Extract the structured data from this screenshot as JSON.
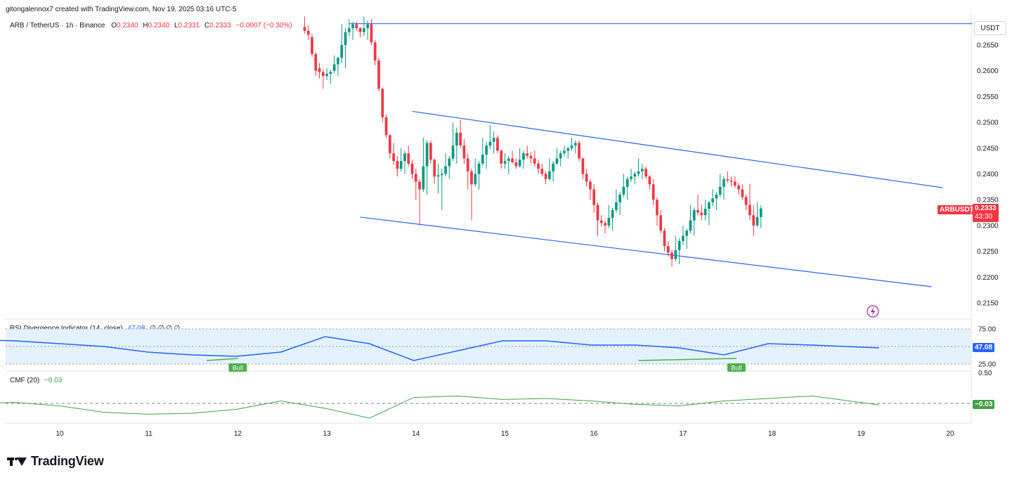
{
  "header": {
    "attribution": "gitongalennox7 created with TradingView.com, Nov 19, 2025 03:16 UTC-5",
    "symbol_line": "ARB / TetherUS · 1h · Binance",
    "o_label": "O",
    "o_value": "0.2340",
    "h_label": "H",
    "h_value": "0.2340",
    "l_label": "L",
    "l_value": "0.2331",
    "c_label": "C",
    "c_value": "0.2333",
    "change": "−0.0007 (−0.30%)"
  },
  "price_axis": {
    "currency": "USDT",
    "ticks": [
      "0.2650",
      "0.2600",
      "0.2550",
      "0.2500",
      "0.2450",
      "0.2400",
      "0.2350",
      "0.2300",
      "0.2250",
      "0.2200",
      "0.2150"
    ]
  },
  "last_price": {
    "symbol": "ARBUSDT",
    "price": "0.2333",
    "countdown": "43:30"
  },
  "rsi": {
    "title": "RSI Divergence Indicator (14, close)",
    "value": "47.08",
    "extra": "∅ ∅ ∅ ∅",
    "axis_ticks": [
      "75.00",
      "25.00"
    ],
    "current_badge": "47.08",
    "bull_label": "Bull"
  },
  "cmf": {
    "title": "CMF (20)",
    "value": "−0.03",
    "current_badge": "−0.03",
    "axis_tick": "0.50"
  },
  "time_axis": [
    "10",
    "11",
    "12",
    "13",
    "14",
    "15",
    "16",
    "17",
    "18",
    "19",
    "20"
  ],
  "brand": {
    "name": "TradingView"
  },
  "colors": {
    "up": "#089981",
    "down": "#f23645",
    "line": "#2962ff",
    "rsi": "#2962ff",
    "cmf": "#43a047",
    "band": "#e3f2fd"
  },
  "chart_data": {
    "type": "candlestick",
    "interval": "1h",
    "x_start": "2025-11-09",
    "ylim": [
      0.212,
      0.27
    ],
    "trendlines": [
      {
        "name": "resistance",
        "from": [
          "2025-11-13 06:00",
          0.26913
        ],
        "to": [
          "2025-11-20 06:00",
          0.26913
        ]
      },
      {
        "name": "channel-upper",
        "from": [
          "2025-11-13 23:00",
          0.25213
        ],
        "to": [
          "2025-11-19 22:00",
          0.23733
        ]
      },
      {
        "name": "channel-lower",
        "from": [
          "2025-11-13 09:00",
          0.23163
        ],
        "to": [
          "2025-11-19 19:00",
          0.21813
        ]
      }
    ],
    "candles_ohlc_by_hour": [
      {
        "t": "2025-11-12 18:00",
        "o": 0.2685,
        "h": 0.2705,
        "l": 0.266,
        "c": 0.267
      },
      {
        "t": "2025-11-12 20:00",
        "o": 0.2665,
        "h": 0.2672,
        "l": 0.259,
        "c": 0.26
      },
      {
        "t": "2025-11-12 22:00",
        "o": 0.2605,
        "h": 0.2615,
        "l": 0.2565,
        "c": 0.259
      },
      {
        "t": "2025-11-13 00:00",
        "o": 0.259,
        "h": 0.2605,
        "l": 0.2575,
        "c": 0.2598
      },
      {
        "t": "2025-11-13 02:00",
        "o": 0.26,
        "h": 0.263,
        "l": 0.259,
        "c": 0.2625
      },
      {
        "t": "2025-11-13 04:00",
        "o": 0.2625,
        "h": 0.269,
        "l": 0.2605,
        "c": 0.2675
      },
      {
        "t": "2025-11-13 06:00",
        "o": 0.2675,
        "h": 0.27,
        "l": 0.266,
        "c": 0.269
      },
      {
        "t": "2025-11-13 08:00",
        "o": 0.269,
        "h": 0.2695,
        "l": 0.2665,
        "c": 0.2675
      },
      {
        "t": "2025-11-13 10:00",
        "o": 0.2675,
        "h": 0.2705,
        "l": 0.266,
        "c": 0.269
      },
      {
        "t": "2025-11-13 12:00",
        "o": 0.269,
        "h": 0.27,
        "l": 0.261,
        "c": 0.262
      },
      {
        "t": "2025-11-13 14:00",
        "o": 0.262,
        "h": 0.2625,
        "l": 0.25,
        "c": 0.251
      },
      {
        "t": "2025-11-13 16:00",
        "o": 0.251,
        "h": 0.2515,
        "l": 0.243,
        "c": 0.244
      },
      {
        "t": "2025-11-13 18:00",
        "o": 0.244,
        "h": 0.246,
        "l": 0.2395,
        "c": 0.241
      },
      {
        "t": "2025-11-13 20:00",
        "o": 0.241,
        "h": 0.245,
        "l": 0.24,
        "c": 0.244
      },
      {
        "t": "2025-11-13 22:00",
        "o": 0.244,
        "h": 0.2455,
        "l": 0.239,
        "c": 0.24
      },
      {
        "t": "2025-11-14 00:00",
        "o": 0.24,
        "h": 0.241,
        "l": 0.23,
        "c": 0.237
      },
      {
        "t": "2025-11-14 02:00",
        "o": 0.237,
        "h": 0.247,
        "l": 0.236,
        "c": 0.246
      },
      {
        "t": "2025-11-14 04:00",
        "o": 0.246,
        "h": 0.2465,
        "l": 0.238,
        "c": 0.2395
      },
      {
        "t": "2025-11-14 06:00",
        "o": 0.2395,
        "h": 0.242,
        "l": 0.233,
        "c": 0.24
      },
      {
        "t": "2025-11-14 08:00",
        "o": 0.24,
        "h": 0.244,
        "l": 0.239,
        "c": 0.243
      },
      {
        "t": "2025-11-14 10:00",
        "o": 0.243,
        "h": 0.25,
        "l": 0.242,
        "c": 0.248
      },
      {
        "t": "2025-11-14 12:00",
        "o": 0.248,
        "h": 0.2505,
        "l": 0.242,
        "c": 0.243
      },
      {
        "t": "2025-11-14 14:00",
        "o": 0.243,
        "h": 0.244,
        "l": 0.231,
        "c": 0.238
      },
      {
        "t": "2025-11-14 16:00",
        "o": 0.238,
        "h": 0.243,
        "l": 0.237,
        "c": 0.242
      },
      {
        "t": "2025-11-14 18:00",
        "o": 0.242,
        "h": 0.247,
        "l": 0.241,
        "c": 0.2455
      },
      {
        "t": "2025-11-14 20:00",
        "o": 0.2455,
        "h": 0.2495,
        "l": 0.244,
        "c": 0.247
      },
      {
        "t": "2025-11-14 22:00",
        "o": 0.247,
        "h": 0.2475,
        "l": 0.241,
        "c": 0.242
      },
      {
        "t": "2025-11-15 00:00",
        "o": 0.242,
        "h": 0.244,
        "l": 0.24,
        "c": 0.243
      },
      {
        "t": "2025-11-15 02:00",
        "o": 0.243,
        "h": 0.2445,
        "l": 0.241,
        "c": 0.2415
      },
      {
        "t": "2025-11-15 04:00",
        "o": 0.2415,
        "h": 0.245,
        "l": 0.241,
        "c": 0.244
      },
      {
        "t": "2025-11-15 06:00",
        "o": 0.244,
        "h": 0.2455,
        "l": 0.242,
        "c": 0.243
      },
      {
        "t": "2025-11-15 08:00",
        "o": 0.243,
        "h": 0.2445,
        "l": 0.24,
        "c": 0.241
      },
      {
        "t": "2025-11-15 10:00",
        "o": 0.241,
        "h": 0.242,
        "l": 0.238,
        "c": 0.239
      },
      {
        "t": "2025-11-15 12:00",
        "o": 0.239,
        "h": 0.243,
        "l": 0.2385,
        "c": 0.242
      },
      {
        "t": "2025-11-15 14:00",
        "o": 0.242,
        "h": 0.245,
        "l": 0.2415,
        "c": 0.244
      },
      {
        "t": "2025-11-15 16:00",
        "o": 0.244,
        "h": 0.2455,
        "l": 0.243,
        "c": 0.245
      },
      {
        "t": "2025-11-15 18:00",
        "o": 0.245,
        "h": 0.247,
        "l": 0.244,
        "c": 0.246
      },
      {
        "t": "2025-11-15 20:00",
        "o": 0.246,
        "h": 0.2465,
        "l": 0.239,
        "c": 0.24
      },
      {
        "t": "2025-11-15 22:00",
        "o": 0.24,
        "h": 0.241,
        "l": 0.235,
        "c": 0.237
      },
      {
        "t": "2025-11-16 00:00",
        "o": 0.237,
        "h": 0.238,
        "l": 0.228,
        "c": 0.231
      },
      {
        "t": "2025-11-16 02:00",
        "o": 0.231,
        "h": 0.232,
        "l": 0.2285,
        "c": 0.23
      },
      {
        "t": "2025-11-16 04:00",
        "o": 0.23,
        "h": 0.234,
        "l": 0.229,
        "c": 0.233
      },
      {
        "t": "2025-11-16 06:00",
        "o": 0.233,
        "h": 0.237,
        "l": 0.232,
        "c": 0.236
      },
      {
        "t": "2025-11-16 08:00",
        "o": 0.236,
        "h": 0.24,
        "l": 0.235,
        "c": 0.239
      },
      {
        "t": "2025-11-16 10:00",
        "o": 0.239,
        "h": 0.241,
        "l": 0.238,
        "c": 0.24
      },
      {
        "t": "2025-11-16 12:00",
        "o": 0.24,
        "h": 0.243,
        "l": 0.239,
        "c": 0.241
      },
      {
        "t": "2025-11-16 14:00",
        "o": 0.241,
        "h": 0.2415,
        "l": 0.237,
        "c": 0.238
      },
      {
        "t": "2025-11-16 16:00",
        "o": 0.238,
        "h": 0.239,
        "l": 0.23,
        "c": 0.232
      },
      {
        "t": "2025-11-16 18:00",
        "o": 0.232,
        "h": 0.233,
        "l": 0.225,
        "c": 0.226
      },
      {
        "t": "2025-11-16 20:00",
        "o": 0.226,
        "h": 0.227,
        "l": 0.222,
        "c": 0.2235
      },
      {
        "t": "2025-11-16 22:00",
        "o": 0.2235,
        "h": 0.228,
        "l": 0.2225,
        "c": 0.227
      },
      {
        "t": "2025-11-17 00:00",
        "o": 0.227,
        "h": 0.23,
        "l": 0.2255,
        "c": 0.229
      },
      {
        "t": "2025-11-17 02:00",
        "o": 0.229,
        "h": 0.234,
        "l": 0.228,
        "c": 0.233
      },
      {
        "t": "2025-11-17 04:00",
        "o": 0.233,
        "h": 0.236,
        "l": 0.231,
        "c": 0.232
      },
      {
        "t": "2025-11-17 06:00",
        "o": 0.232,
        "h": 0.235,
        "l": 0.23,
        "c": 0.2345
      },
      {
        "t": "2025-11-17 08:00",
        "o": 0.2345,
        "h": 0.237,
        "l": 0.233,
        "c": 0.236
      },
      {
        "t": "2025-11-17 10:00",
        "o": 0.236,
        "h": 0.24,
        "l": 0.235,
        "c": 0.239
      },
      {
        "t": "2025-11-17 12:00",
        "o": 0.239,
        "h": 0.2405,
        "l": 0.2375,
        "c": 0.2385
      },
      {
        "t": "2025-11-17 14:00",
        "o": 0.2385,
        "h": 0.2395,
        "l": 0.236,
        "c": 0.237
      },
      {
        "t": "2025-11-17 16:00",
        "o": 0.237,
        "h": 0.238,
        "l": 0.233,
        "c": 0.234
      },
      {
        "t": "2025-11-17 18:00",
        "o": 0.234,
        "h": 0.238,
        "l": 0.228,
        "c": 0.23
      },
      {
        "t": "2025-11-17 20:00",
        "o": 0.23,
        "h": 0.2345,
        "l": 0.2295,
        "c": 0.2333
      }
    ],
    "rsi_series": {
      "name": "RSI",
      "current": 47.08,
      "ylim": [
        15,
        85
      ],
      "x_hours": [
        0,
        8,
        16,
        24,
        32,
        40,
        48,
        56,
        64,
        72,
        80,
        88,
        96,
        104,
        112,
        120,
        128,
        136,
        144,
        152,
        164
      ],
      "values": [
        60,
        58,
        54,
        50,
        42,
        38,
        36,
        42,
        64,
        54,
        30,
        44,
        58,
        58,
        52,
        52,
        48,
        38,
        54,
        52,
        48
      ]
    },
    "cmf_series": {
      "name": "CMF",
      "current": -0.03,
      "ylim": [
        -0.4,
        0.5
      ],
      "x_hours": [
        0,
        8,
        16,
        24,
        32,
        40,
        48,
        56,
        64,
        72,
        80,
        88,
        96,
        104,
        112,
        120,
        128,
        136,
        144,
        152,
        164
      ],
      "values": [
        0.0,
        0.02,
        -0.05,
        -0.18,
        -0.22,
        -0.2,
        -0.12,
        0.05,
        -0.1,
        -0.3,
        0.12,
        0.15,
        0.08,
        0.1,
        0.05,
        -0.02,
        -0.05,
        0.05,
        0.1,
        0.15,
        -0.03
      ]
    }
  }
}
